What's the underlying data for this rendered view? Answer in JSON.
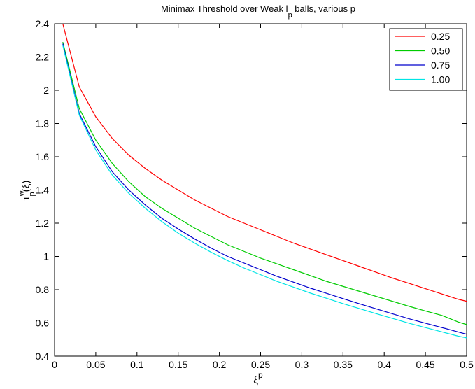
{
  "chart_data": {
    "type": "line",
    "title": {
      "prefix": "Minimax Threshold over Weak l",
      "sub": "p",
      "suffix": " balls, various p"
    },
    "xlabel": {
      "base": "ξ",
      "sup": "p"
    },
    "ylabel": {
      "base": "τ",
      "sup": "w",
      "sub": "p",
      "suffix": "(ξ)"
    },
    "xlim": [
      0,
      0.5
    ],
    "ylim": [
      0.4,
      2.4
    ],
    "x_ticks": [
      0,
      0.05,
      0.1,
      0.15,
      0.2,
      0.25,
      0.3,
      0.35,
      0.4,
      0.45,
      0.5
    ],
    "x_tick_labels": [
      "0",
      "0.05",
      "0.1",
      "0.15",
      "0.2",
      "0.25",
      "0.3",
      "0.35",
      "0.4",
      "0.45",
      "0.5"
    ],
    "y_ticks": [
      0.4,
      0.6,
      0.8,
      1,
      1.2,
      1.4,
      1.6,
      1.8,
      2,
      2.2,
      2.4
    ],
    "y_tick_labels": [
      "0.4",
      "0.6",
      "0.8",
      "1",
      "1.2",
      "1.4",
      "1.6",
      "1.8",
      "2",
      "2.2",
      "2.4"
    ],
    "grid": false,
    "legend_position": "top-right",
    "x": [
      0.01,
      0.03,
      0.05,
      0.07,
      0.09,
      0.11,
      0.13,
      0.15,
      0.17,
      0.19,
      0.21,
      0.23,
      0.25,
      0.27,
      0.29,
      0.31,
      0.33,
      0.35,
      0.37,
      0.39,
      0.41,
      0.43,
      0.45,
      0.47,
      0.49,
      0.5
    ],
    "series": [
      {
        "name": "0.25",
        "color": "#ff0000",
        "values": [
          2.43,
          2.02,
          1.84,
          1.71,
          1.61,
          1.53,
          1.46,
          1.4,
          1.34,
          1.29,
          1.24,
          1.2,
          1.16,
          1.12,
          1.08,
          1.045,
          1.01,
          0.975,
          0.94,
          0.905,
          0.87,
          0.838,
          0.806,
          0.774,
          0.742,
          0.73
        ]
      },
      {
        "name": "0.50",
        "color": "#00cc00",
        "values": [
          2.29,
          1.89,
          1.7,
          1.56,
          1.45,
          1.36,
          1.29,
          1.23,
          1.17,
          1.12,
          1.07,
          1.03,
          0.99,
          0.955,
          0.92,
          0.885,
          0.85,
          0.82,
          0.79,
          0.76,
          0.73,
          0.7,
          0.672,
          0.645,
          0.605,
          0.59
        ]
      },
      {
        "name": "0.75",
        "color": "#0000cc",
        "values": [
          2.28,
          1.86,
          1.66,
          1.51,
          1.4,
          1.31,
          1.23,
          1.165,
          1.105,
          1.05,
          1.0,
          0.96,
          0.92,
          0.88,
          0.845,
          0.81,
          0.778,
          0.746,
          0.715,
          0.685,
          0.655,
          0.625,
          0.598,
          0.572,
          0.545,
          0.532
        ]
      },
      {
        "name": "1.00",
        "color": "#00e5e5",
        "values": [
          2.27,
          1.85,
          1.64,
          1.49,
          1.38,
          1.29,
          1.21,
          1.14,
          1.08,
          1.025,
          0.975,
          0.93,
          0.89,
          0.85,
          0.815,
          0.78,
          0.748,
          0.716,
          0.686,
          0.656,
          0.627,
          0.598,
          0.572,
          0.546,
          0.52,
          0.51
        ]
      }
    ]
  }
}
